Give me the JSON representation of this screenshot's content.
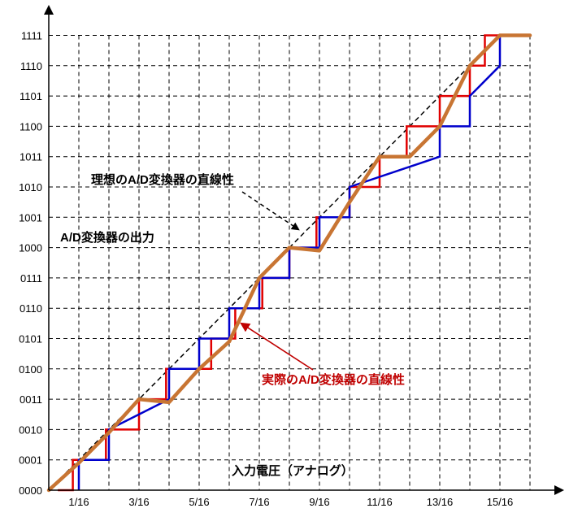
{
  "chart_data": {
    "type": "line",
    "xlabel": "入力電圧（アナログ）",
    "ylabel": "A/D変換器の出力",
    "x_ticks": [
      "1/16",
      "3/16",
      "5/16",
      "7/16",
      "9/16",
      "11/16",
      "13/16",
      "15/16"
    ],
    "x_tick_values": [
      1,
      3,
      5,
      7,
      9,
      11,
      13,
      15
    ],
    "y_ticks": [
      "0000",
      "0001",
      "0010",
      "0011",
      "0100",
      "0101",
      "0110",
      "0111",
      "1000",
      "1001",
      "1010",
      "1011",
      "1100",
      "1101",
      "1110",
      "1111"
    ],
    "xlim": [
      0,
      16
    ],
    "ylim": [
      0,
      15
    ],
    "grid": true,
    "annotations": [
      {
        "text": "理想のA/D変換器の直線性",
        "color": "#000000",
        "arrow_to": [
          8.3,
          8.6
        ]
      },
      {
        "text": "実際のA/D変換器の直線性",
        "color": "#c00000",
        "arrow_to": [
          6.4,
          5.5
        ]
      }
    ],
    "series": [
      {
        "name": "",
        "style": "ideal",
        "color": "#000000",
        "x": [
          0,
          15
        ],
        "y": [
          0,
          15
        ]
      },
      {
        "name": "",
        "style": "actual",
        "color": "#c87533",
        "x": [
          0,
          1,
          2,
          3,
          4,
          5,
          6,
          7,
          8,
          9,
          10,
          11,
          12,
          13,
          14,
          15,
          16
        ],
        "y": [
          0,
          0.9,
          1.9,
          3,
          2.9,
          4,
          4.9,
          7,
          8,
          7.9,
          9.5,
          11,
          11,
          12,
          14,
          15,
          15
        ]
      },
      {
        "name": "",
        "style": "step",
        "color": "#e00000",
        "x": [
          0.3,
          0.8,
          0.8,
          1.9,
          1.9,
          3.0,
          3.0,
          3.9,
          3.9,
          5.4,
          5.4,
          6.2,
          6.2,
          7.1,
          7.1,
          8.0,
          8.0,
          8.9,
          8.9,
          10.0,
          10.0,
          11.0,
          11.0,
          11.9,
          11.9,
          13.0,
          13.0,
          14.0,
          14.0,
          14.5,
          14.5,
          16.0
        ],
        "y": [
          0,
          0,
          1,
          1,
          2,
          2,
          3,
          3,
          4,
          4,
          5,
          5,
          6,
          6,
          7,
          7,
          8,
          8,
          9,
          9,
          10,
          10,
          11,
          11,
          12,
          12,
          13,
          13,
          14,
          14,
          15,
          15
        ]
      },
      {
        "name": "",
        "style": "step",
        "color": "#0000cc",
        "x": [
          1.0,
          1.0,
          2.0,
          2.0,
          4.0,
          4.0,
          5.0,
          5.0,
          6.0,
          6.0,
          7.0,
          7.0,
          8.0,
          8.0,
          9.0,
          9.0,
          10.0,
          10.0,
          13.0,
          13.0,
          14.0,
          14.0,
          15.0,
          15.0
        ],
        "y": [
          0,
          1,
          1,
          2,
          3,
          4,
          4,
          5,
          5,
          6,
          6,
          7,
          7,
          8,
          8,
          9,
          9,
          10,
          11,
          12,
          12,
          13,
          14,
          15
        ]
      }
    ]
  }
}
